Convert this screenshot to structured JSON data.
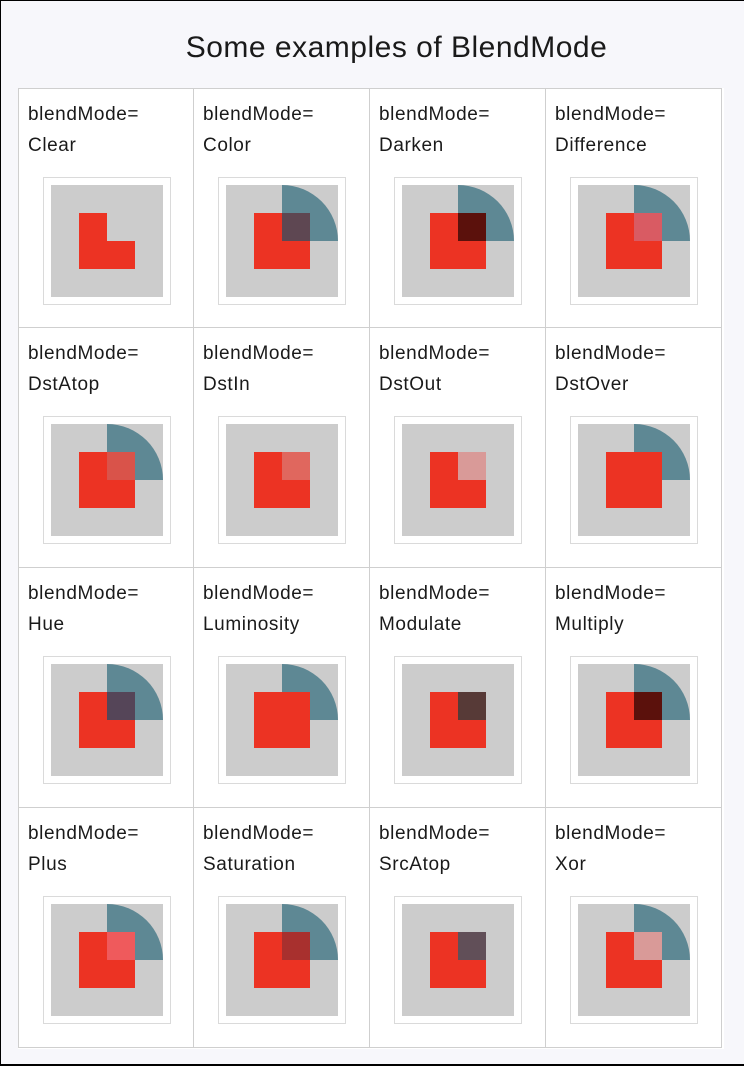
{
  "title": "Some examples of BlendMode",
  "label_prefix": "blendMode=",
  "colors": {
    "background_box": "#cccccc",
    "source_square": "#ec3323",
    "destination_circle": "#5e8894"
  },
  "modes": [
    {
      "name": "Clear",
      "icon": "clear-blend-preview"
    },
    {
      "name": "Color",
      "icon": "color-blend-preview"
    },
    {
      "name": "Darken",
      "icon": "darken-blend-preview"
    },
    {
      "name": "Difference",
      "icon": "difference-blend-preview"
    },
    {
      "name": "DstAtop",
      "icon": "dstatop-blend-preview"
    },
    {
      "name": "DstIn",
      "icon": "dstin-blend-preview"
    },
    {
      "name": "DstOut",
      "icon": "dstout-blend-preview"
    },
    {
      "name": "DstOver",
      "icon": "dstover-blend-preview"
    },
    {
      "name": "Hue",
      "icon": "hue-blend-preview"
    },
    {
      "name": "Luminosity",
      "icon": "luminosity-blend-preview"
    },
    {
      "name": "Modulate",
      "icon": "modulate-blend-preview"
    },
    {
      "name": "Multiply",
      "icon": "multiply-blend-preview"
    },
    {
      "name": "Plus",
      "icon": "plus-blend-preview"
    },
    {
      "name": "Saturation",
      "icon": "saturation-blend-preview"
    },
    {
      "name": "SrcAtop",
      "icon": "srcatop-blend-preview"
    },
    {
      "name": "Xor",
      "icon": "xor-blend-preview"
    }
  ]
}
